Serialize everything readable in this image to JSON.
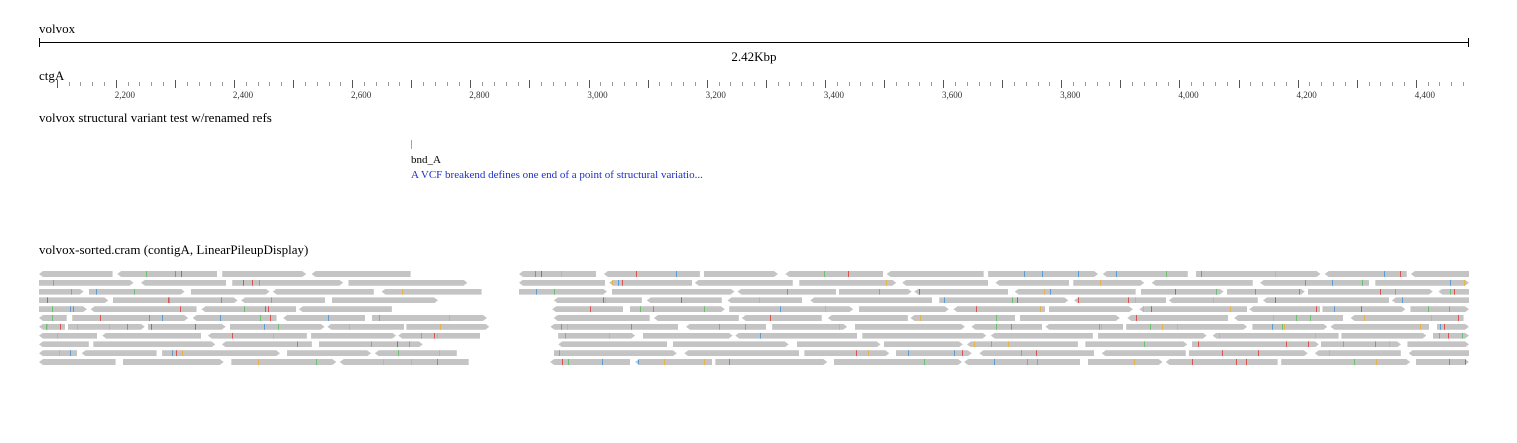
{
  "assembly": {
    "name": "volvox"
  },
  "overview": {
    "span_label": "2.42Kbp"
  },
  "reference": {
    "name": "ctgA",
    "view_start": 2070,
    "view_end": 4490,
    "tick_labels": [
      "2,200",
      "2,400",
      "2,600",
      "2,800",
      "3,000",
      "3,200",
      "3,400",
      "3,600",
      "3,800",
      "4,000",
      "4,200",
      "4,400"
    ]
  },
  "variant_track": {
    "title": "volvox structural variant test w/renamed refs",
    "feature": {
      "name": "bnd_A",
      "description": "A VCF breakend defines one end of a point of structural variatio...",
      "position": 2695,
      "color": "#d4a02a"
    }
  },
  "alignments_track": {
    "title": "volvox-sorted.cram (contigA, LinearPileupDisplay)",
    "read_color": "#c4c4c4",
    "mismatch_colors": [
      "#d9534f",
      "#5b9bd5",
      "#e8b04a",
      "#6cbf6c"
    ]
  }
}
